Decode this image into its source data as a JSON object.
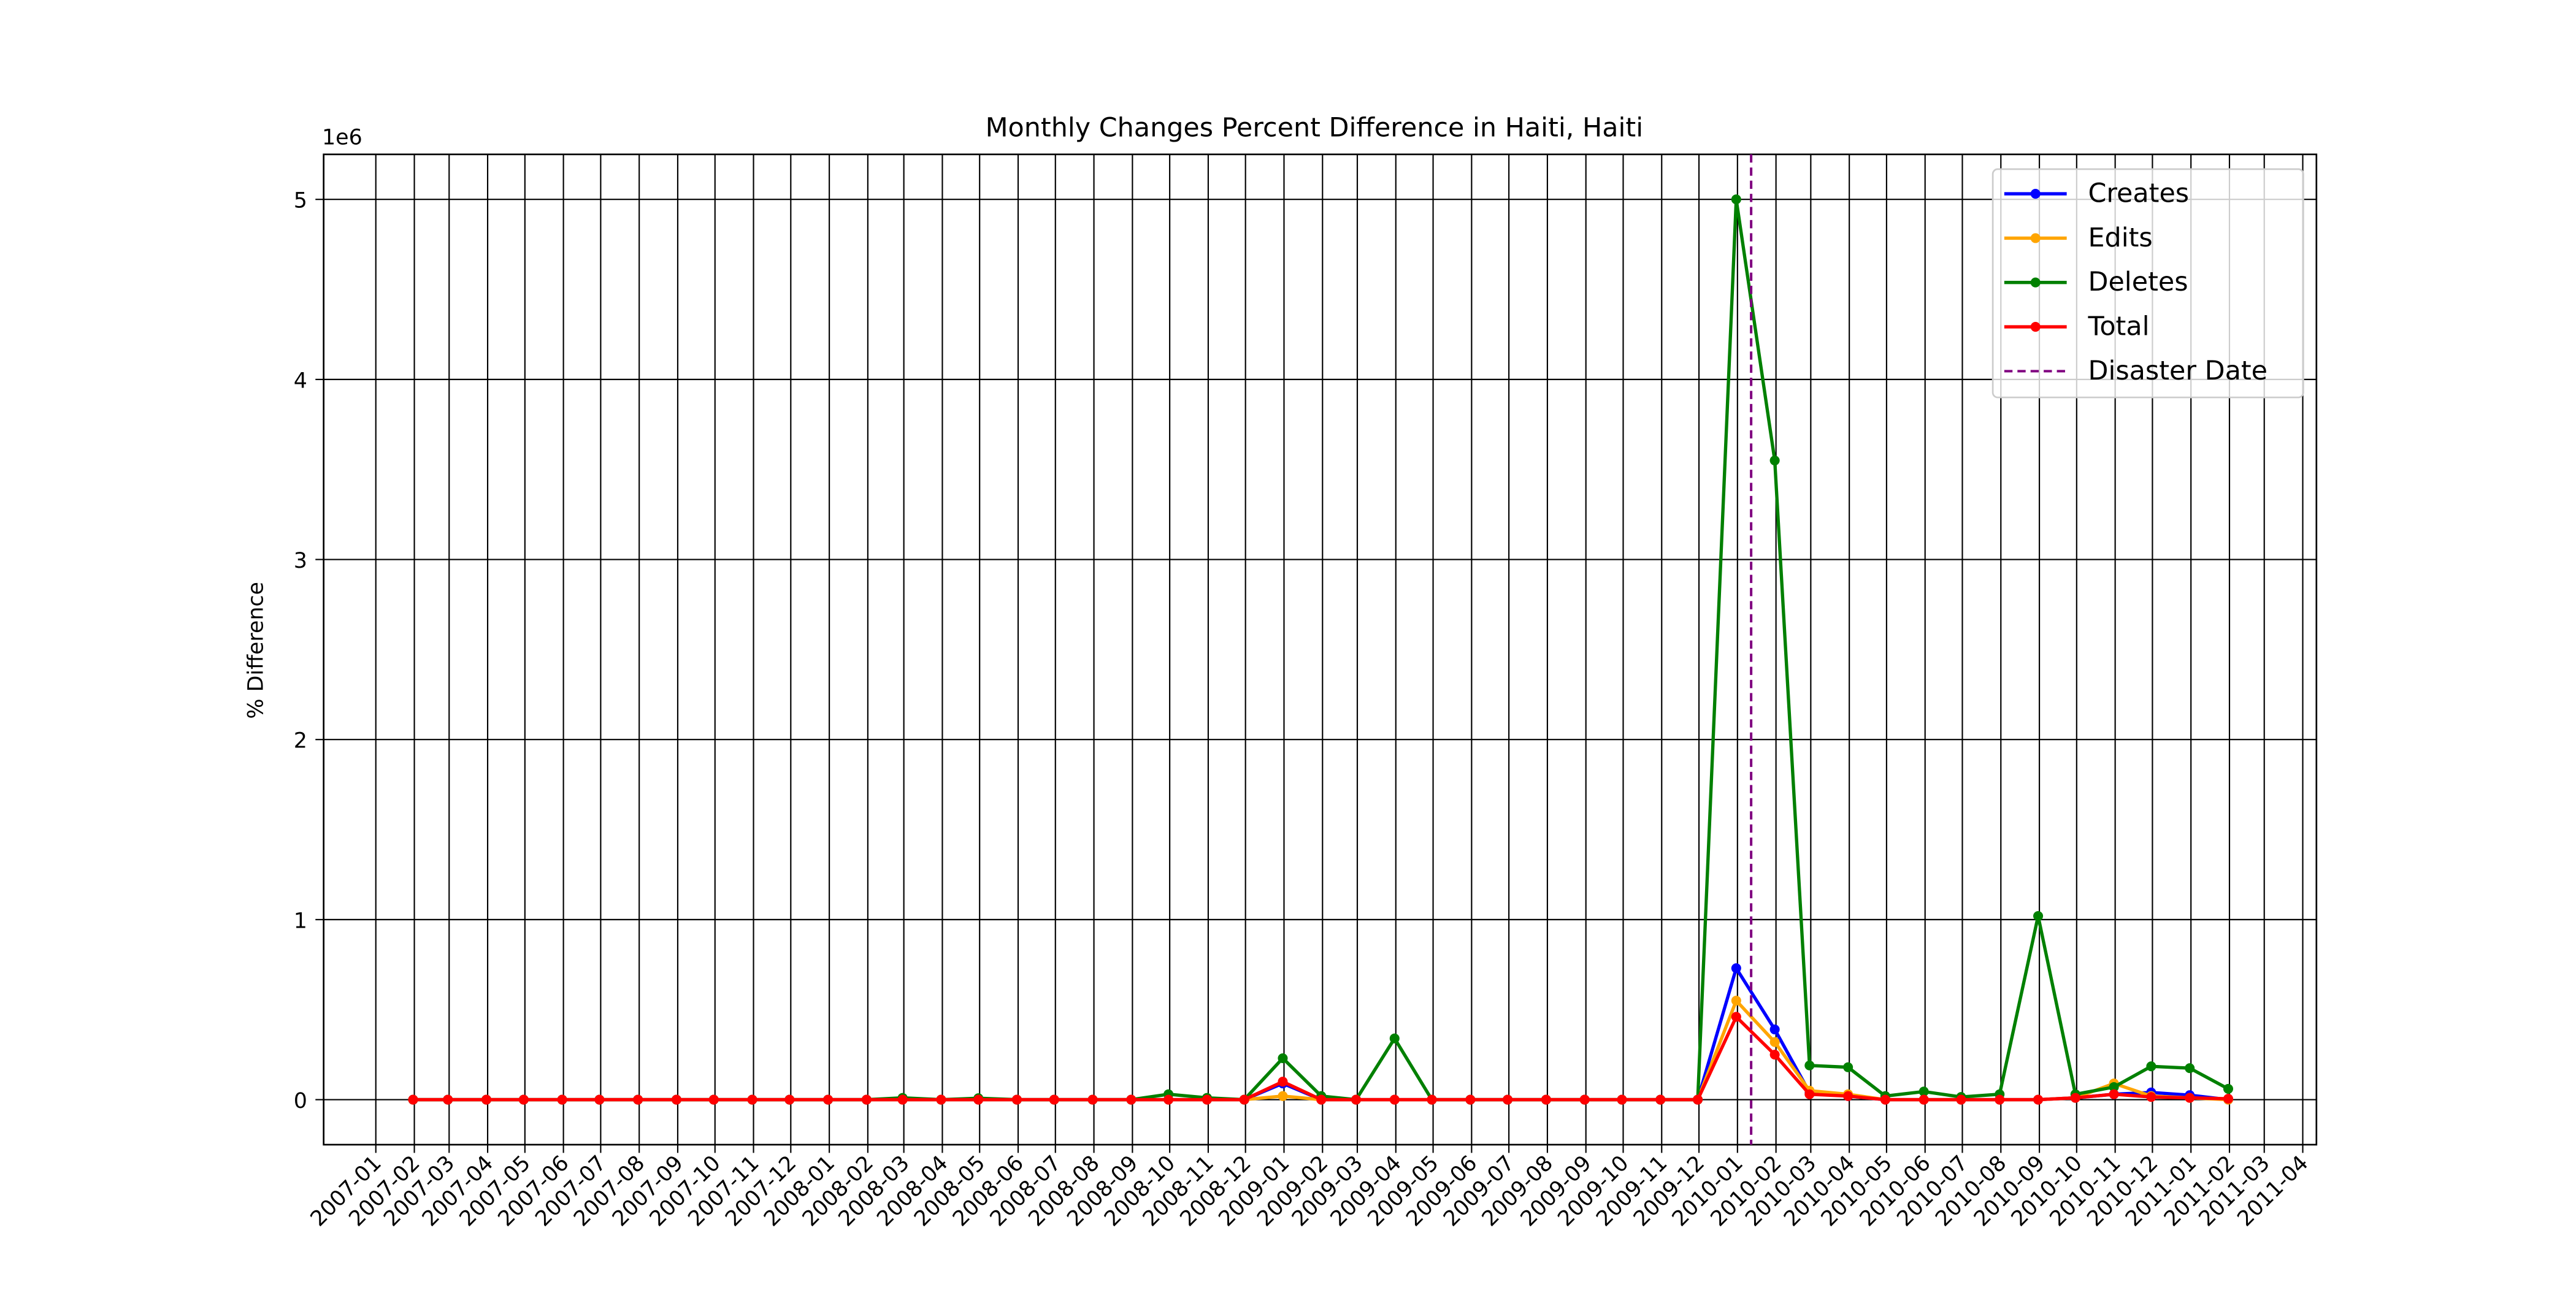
{
  "chart_data": {
    "type": "line",
    "title": "Monthly Changes Percent Difference in Haiti, Haiti",
    "y_label": "% Difference",
    "y_offset_label": "1e6",
    "x": [
      "2007-01",
      "2007-02",
      "2007-03",
      "2007-04",
      "2007-05",
      "2007-06",
      "2007-07",
      "2007-08",
      "2007-09",
      "2007-10",
      "2007-11",
      "2007-12",
      "2008-01",
      "2008-02",
      "2008-03",
      "2008-04",
      "2008-05",
      "2008-06",
      "2008-07",
      "2008-08",
      "2008-09",
      "2008-10",
      "2008-11",
      "2008-12",
      "2009-01",
      "2009-02",
      "2009-03",
      "2009-04",
      "2009-05",
      "2009-06",
      "2009-07",
      "2009-08",
      "2009-09",
      "2009-10",
      "2009-11",
      "2009-12",
      "2010-01",
      "2010-02",
      "2010-03",
      "2010-04",
      "2010-05",
      "2010-06",
      "2010-07",
      "2010-08",
      "2010-09",
      "2010-10",
      "2010-11",
      "2010-12",
      "2011-01"
    ],
    "series": [
      {
        "name": "Creates",
        "color": "#0000ff",
        "values": [
          0,
          0,
          0,
          0,
          0,
          0,
          0,
          0,
          0,
          0,
          0,
          0,
          0,
          0,
          0,
          0,
          0,
          0,
          0,
          0,
          0,
          0,
          0,
          90000,
          0,
          0,
          0,
          0,
          0,
          0,
          0,
          0,
          0,
          0,
          0,
          730000,
          390000,
          40000,
          20000,
          0,
          0,
          0,
          0,
          0,
          10000,
          30000,
          40000,
          25000,
          0
        ]
      },
      {
        "name": "Edits",
        "color": "#ffa500",
        "values": [
          0,
          0,
          0,
          0,
          0,
          0,
          0,
          0,
          0,
          0,
          0,
          0,
          0,
          0,
          0,
          0,
          0,
          0,
          0,
          0,
          0,
          0,
          0,
          20000,
          0,
          0,
          0,
          0,
          0,
          0,
          0,
          0,
          0,
          0,
          0,
          550000,
          320000,
          50000,
          30000,
          0,
          0,
          0,
          0,
          0,
          10000,
          90000,
          20000,
          10000,
          0
        ]
      },
      {
        "name": "Deletes",
        "color": "#008000",
        "values": [
          0,
          0,
          0,
          0,
          0,
          0,
          0,
          0,
          0,
          0,
          0,
          0,
          0,
          10000,
          0,
          8000,
          0,
          0,
          0,
          0,
          30000,
          10000,
          0,
          230000,
          20000,
          0,
          340000,
          0,
          0,
          0,
          0,
          0,
          0,
          0,
          0,
          5000000,
          3550000,
          190000,
          180000,
          20000,
          45000,
          15000,
          30000,
          1020000,
          30000,
          70000,
          185000,
          175000,
          60000
        ]
      },
      {
        "name": "Total",
        "color": "#ff0000",
        "values": [
          0,
          0,
          0,
          0,
          0,
          0,
          0,
          0,
          0,
          0,
          0,
          0,
          0,
          0,
          0,
          0,
          0,
          0,
          0,
          0,
          0,
          0,
          0,
          100000,
          0,
          0,
          0,
          0,
          0,
          0,
          0,
          0,
          0,
          0,
          0,
          460000,
          250000,
          30000,
          20000,
          0,
          0,
          0,
          0,
          0,
          10000,
          30000,
          15000,
          10000,
          5000
        ]
      }
    ],
    "disaster": {
      "name": "Disaster Date",
      "date": "2010-01-12",
      "color": "#800080"
    },
    "xlim": [
      "2006-11-20",
      "2011-04-12"
    ],
    "xticks": [
      "2007-01",
      "2007-02",
      "2007-03",
      "2007-04",
      "2007-05",
      "2007-06",
      "2007-07",
      "2007-08",
      "2007-09",
      "2007-10",
      "2007-11",
      "2007-12",
      "2008-01",
      "2008-02",
      "2008-03",
      "2008-04",
      "2008-05",
      "2008-06",
      "2008-07",
      "2008-08",
      "2008-09",
      "2008-10",
      "2008-11",
      "2008-12",
      "2009-01",
      "2009-02",
      "2009-03",
      "2009-04",
      "2009-05",
      "2009-06",
      "2009-07",
      "2009-08",
      "2009-09",
      "2009-10",
      "2009-11",
      "2009-12",
      "2010-01",
      "2010-02",
      "2010-03",
      "2010-04",
      "2010-05",
      "2010-06",
      "2010-07",
      "2010-08",
      "2010-09",
      "2010-10",
      "2010-11",
      "2010-12",
      "2011-01",
      "2011-02",
      "2011-03",
      "2011-04"
    ],
    "ylim": [
      -250000,
      5250000
    ],
    "yticks": [
      0,
      {
        "value": 1000000,
        "label": "1"
      },
      {
        "value": 2000000,
        "label": "2"
      },
      {
        "value": 3000000,
        "label": "3"
      },
      {
        "value": 4000000,
        "label": "4"
      },
      {
        "value": 5000000,
        "label": "5"
      }
    ],
    "grid": true,
    "legend": "upper right"
  }
}
